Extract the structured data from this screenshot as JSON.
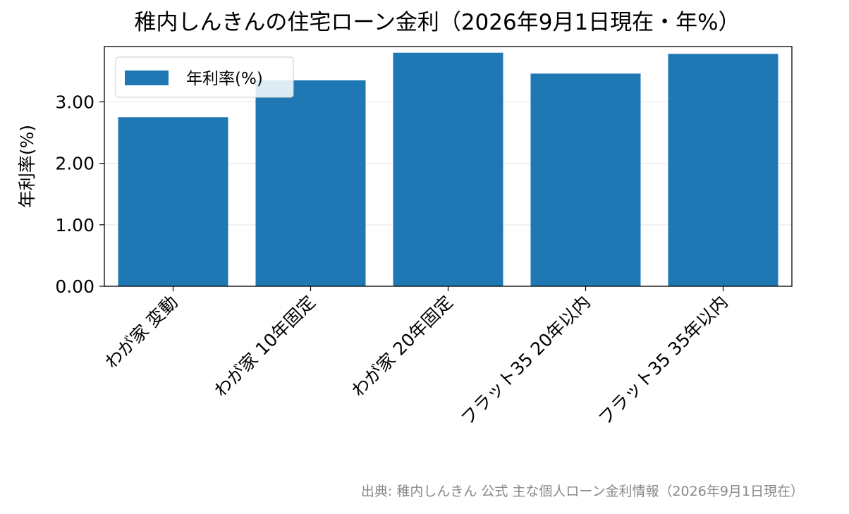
{
  "chart_data": {
    "type": "bar",
    "title": "稚内しんきんの住宅ローン金利（2026年9月1日現在・年%）",
    "xlabel": "",
    "ylabel": "年利率(%)",
    "categories": [
      "わが家 変動",
      "わが家 10年固定",
      "わが家 20年固定",
      "フラット35 20年以内",
      "フラット35 35年以内"
    ],
    "series": [
      {
        "name": "年利率(%)",
        "values": [
          2.75,
          3.35,
          3.8,
          3.46,
          3.78
        ]
      }
    ],
    "ylim": [
      0,
      3.9
    ],
    "yticks": [
      0,
      1,
      2,
      3
    ],
    "ytick_labels": [
      "0.00",
      "1.00",
      "2.00",
      "3.00"
    ],
    "grid": "horizontal",
    "legend_position": "top-left",
    "colors": {
      "bar": "#1f77b4"
    }
  },
  "footer": {
    "source": "出典: 稚内しんきん 公式 主な個人ローン金利情報（2026年9月1日現在）"
  }
}
